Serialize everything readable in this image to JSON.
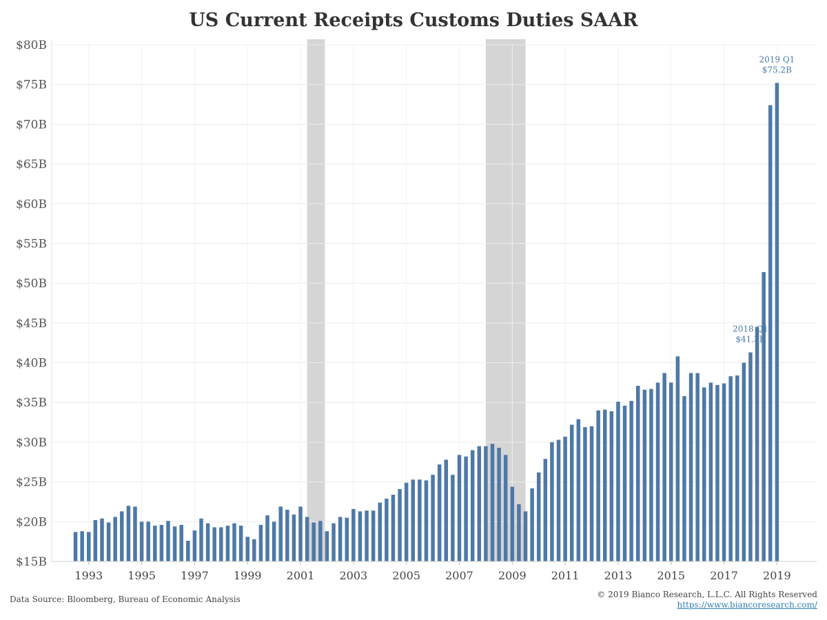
{
  "chart_data": {
    "type": "bar",
    "title": "US Current Receipts Customs Duties SAAR",
    "xlabel": "",
    "ylabel": "",
    "ylim": [
      15,
      80
    ],
    "y_ticks": [
      "$15B",
      "$20B",
      "$25B",
      "$30B",
      "$35B",
      "$40B",
      "$45B",
      "$50B",
      "$55B",
      "$60B",
      "$65B",
      "$70B",
      "$75B",
      "$80B"
    ],
    "y_tick_values": [
      15,
      20,
      25,
      30,
      35,
      40,
      45,
      50,
      55,
      60,
      65,
      70,
      75,
      80
    ],
    "x_ticks": [
      "1993",
      "1995",
      "1997",
      "1999",
      "2001",
      "2003",
      "2005",
      "2007",
      "2009",
      "2011",
      "2013",
      "2015",
      "2017",
      "2019"
    ],
    "x_tick_years": [
      1993,
      1995,
      1997,
      1999,
      2001,
      2003,
      2005,
      2007,
      2009,
      2011,
      2013,
      2015,
      2017,
      2019
    ],
    "x_range_years": [
      1991.6,
      2020.5
    ],
    "grid": true,
    "bar_color": "#4e79a7",
    "shade_color": "#d5d5d5",
    "recessions": [
      [
        2001.25,
        2001.92
      ],
      [
        2008.0,
        2009.5
      ]
    ],
    "series": [
      {
        "x": [
          1992.5,
          1992.75,
          1993.0,
          1993.25,
          1993.5,
          1993.75,
          1994.0,
          1994.25,
          1994.5,
          1994.75,
          1995.0,
          1995.25,
          1995.5,
          1995.75,
          1996.0,
          1996.25,
          1996.5,
          1996.75,
          1997.0,
          1997.25,
          1997.5,
          1997.75,
          1998.0,
          1998.25,
          1998.5,
          1998.75,
          1999.0,
          1999.25,
          1999.5,
          1999.75,
          2000.0,
          2000.25,
          2000.5,
          2000.75,
          2001.0,
          2001.25,
          2001.5,
          2001.75,
          2002.0,
          2002.25,
          2002.5,
          2002.75,
          2003.0,
          2003.25,
          2003.5,
          2003.75,
          2004.0,
          2004.25,
          2004.5,
          2004.75,
          2005.0,
          2005.25,
          2005.5,
          2005.75,
          2006.0,
          2006.25,
          2006.5,
          2006.75,
          2007.0,
          2007.25,
          2007.5,
          2007.75,
          2008.0,
          2008.25,
          2008.5,
          2008.75,
          2009.0,
          2009.25,
          2009.5,
          2009.75,
          2010.0,
          2010.25,
          2010.5,
          2010.75,
          2011.0,
          2011.25,
          2011.5,
          2011.75,
          2012.0,
          2012.25,
          2012.5,
          2012.75,
          2013.0,
          2013.25,
          2013.5,
          2013.75,
          2014.0,
          2014.25,
          2014.5,
          2014.75,
          2015.0,
          2015.25,
          2015.5,
          2015.75,
          2016.0,
          2016.25,
          2016.5,
          2016.75,
          2017.0,
          2017.25,
          2017.5,
          2017.75,
          2018.0,
          2018.25,
          2018.5,
          2018.75,
          2019.0
        ],
        "values": [
          18.7,
          18.8,
          18.7,
          20.2,
          20.4,
          19.9,
          20.6,
          21.3,
          22.0,
          21.9,
          20.0,
          20.0,
          19.5,
          19.6,
          20.1,
          19.4,
          19.6,
          17.6,
          18.9,
          20.4,
          19.8,
          19.3,
          19.3,
          19.5,
          19.8,
          19.5,
          18.1,
          17.8,
          19.6,
          20.8,
          20.0,
          21.9,
          21.5,
          20.9,
          21.9,
          20.6,
          19.9,
          20.1,
          18.8,
          19.8,
          20.6,
          20.5,
          21.6,
          21.3,
          21.4,
          21.4,
          22.4,
          22.9,
          23.4,
          24.1,
          24.9,
          25.3,
          25.3,
          25.2,
          25.9,
          27.2,
          27.8,
          25.9,
          28.4,
          28.2,
          29.0,
          29.5,
          29.5,
          29.8,
          29.3,
          28.4,
          24.4,
          22.2,
          21.3,
          24.2,
          26.2,
          27.9,
          30.0,
          30.3,
          30.7,
          32.2,
          32.9,
          31.9,
          32.0,
          34.0,
          34.1,
          33.9,
          35.1,
          34.6,
          35.2,
          37.1,
          36.6,
          36.7,
          37.5,
          38.7,
          37.5,
          40.8,
          35.8,
          38.7,
          38.7,
          36.9,
          37.5,
          37.2,
          37.4,
          38.3,
          38.4,
          40.0,
          41.3,
          44.5,
          51.4,
          72.4,
          75.2
        ]
      }
    ],
    "annotations": [
      {
        "period": "2018 Q1",
        "label": "$41.3B",
        "x": 2018.0,
        "value": 41.3
      },
      {
        "period": "2019 Q1",
        "label": "$75.2B",
        "x": 2019.0,
        "value": 75.2
      }
    ]
  },
  "footer": {
    "source": "Data Source: Bloomberg, Bureau of Economic Analysis",
    "copyright": "© 2019 Bianco Research, L.L.C. All Rights Reserved",
    "website": "https://www.biancoresearch.com/"
  }
}
